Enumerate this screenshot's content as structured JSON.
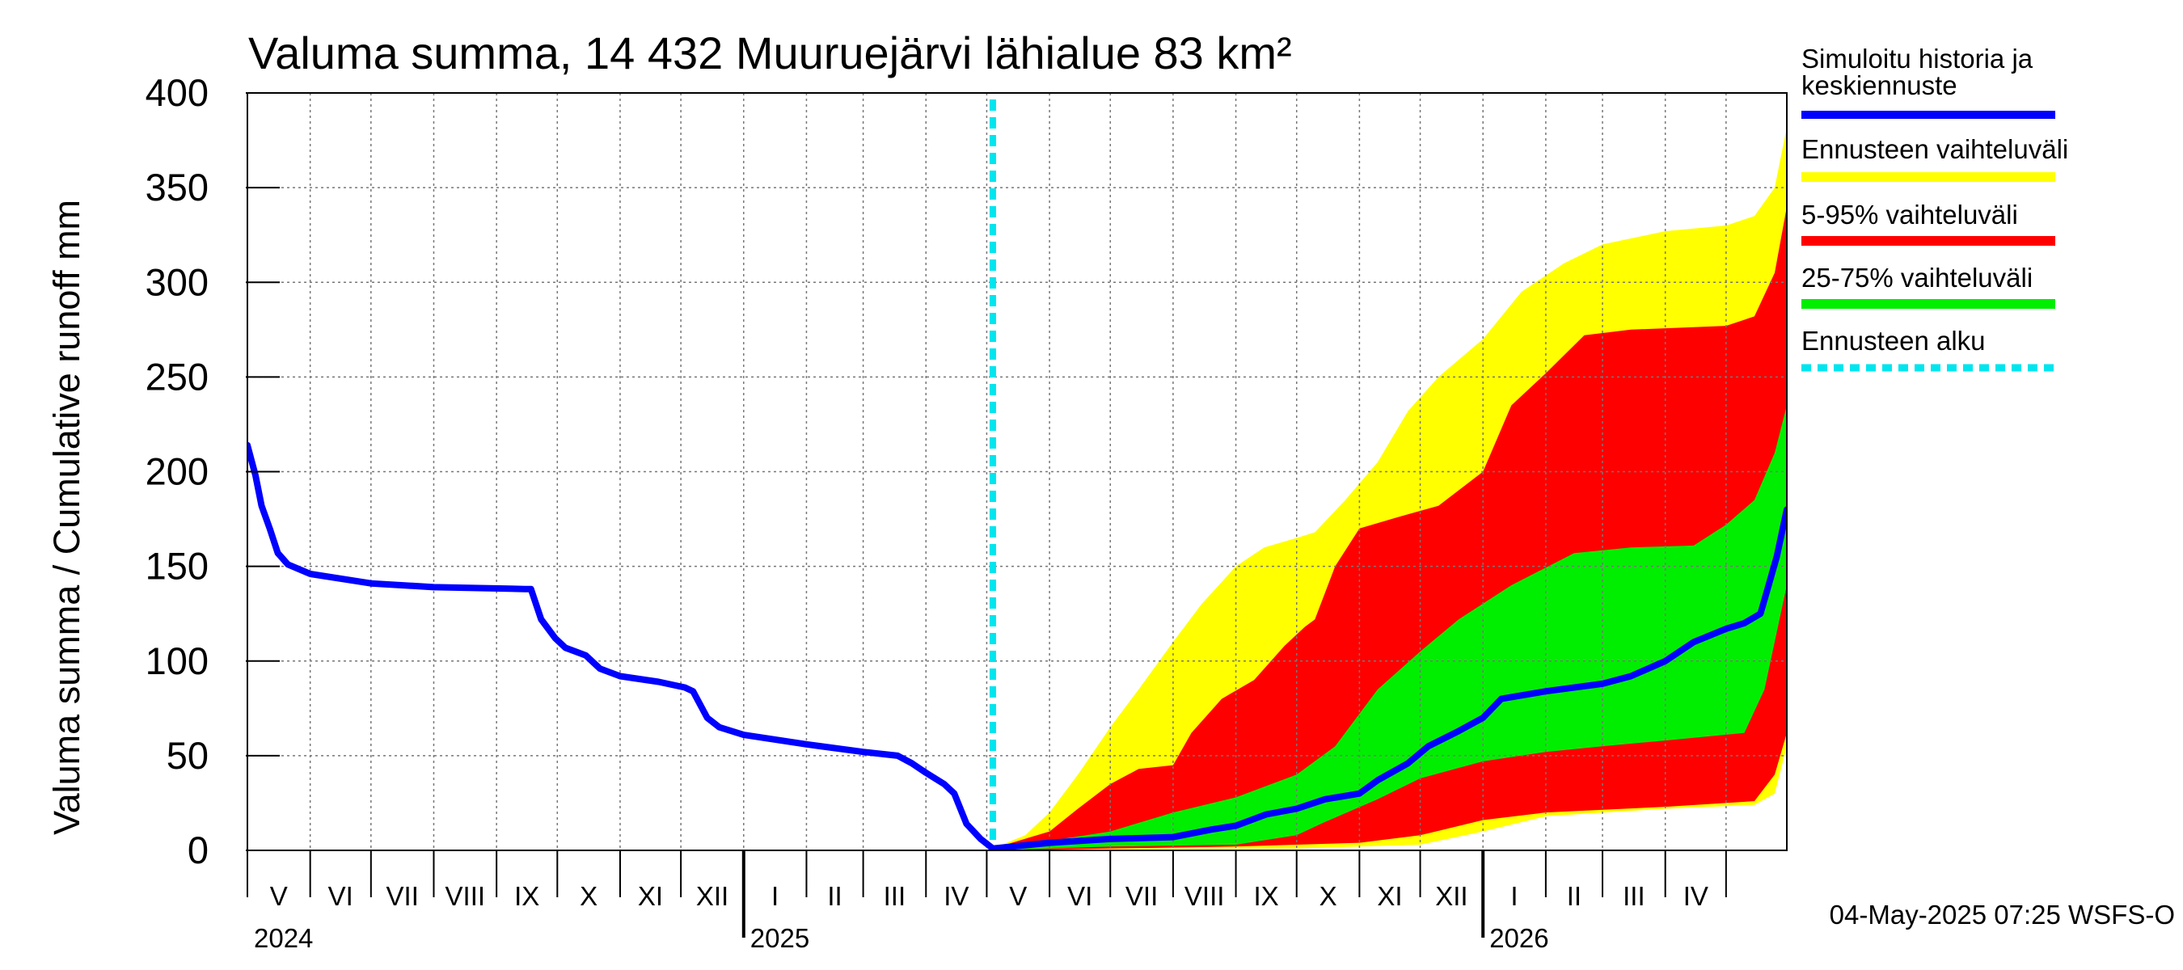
{
  "chart_data": {
    "type": "area",
    "title": "Valuma summa, 14 432 Muuruejärvi lähialue 83 km²",
    "ylabel": "Valuma summa / Cumulative runoff    mm",
    "xlabel": "",
    "ylim": [
      0,
      400
    ],
    "yticks": [
      0,
      50,
      100,
      150,
      200,
      250,
      300,
      350,
      400
    ],
    "xlim": [
      "2024-05-01",
      "2026-05-31"
    ],
    "grid": true,
    "legend_position": "right",
    "month_labels": [
      "V",
      "VI",
      "VII",
      "VIII",
      "IX",
      "X",
      "XI",
      "XII",
      "I",
      "II",
      "III",
      "IV",
      "V",
      "VI",
      "VII",
      "VIII",
      "IX",
      "X",
      "XI",
      "XII",
      "I",
      "II",
      "III",
      "IV"
    ],
    "year_labels": [
      {
        "label": "2024",
        "date": "2024-05-01"
      },
      {
        "label": "2025",
        "date": "2025-01-01"
      },
      {
        "label": "2026",
        "date": "2026-01-01"
      }
    ],
    "forecast_start": "2025-05-04",
    "series": [
      {
        "name": "Simuloitu historia ja keskiennuste",
        "color": "#0000ff",
        "points": [
          [
            "2024-05-01",
            214
          ],
          [
            "2024-05-05",
            198
          ],
          [
            "2024-05-08",
            182
          ],
          [
            "2024-05-12",
            170
          ],
          [
            "2024-05-16",
            157
          ],
          [
            "2024-05-21",
            151
          ],
          [
            "2024-06-01",
            146
          ],
          [
            "2024-07-01",
            141
          ],
          [
            "2024-08-01",
            139
          ],
          [
            "2024-09-15",
            138
          ],
          [
            "2024-09-18",
            138
          ],
          [
            "2024-09-23",
            122
          ],
          [
            "2024-09-30",
            112
          ],
          [
            "2024-10-05",
            107
          ],
          [
            "2024-10-15",
            103
          ],
          [
            "2024-10-22",
            96
          ],
          [
            "2024-11-01",
            92
          ],
          [
            "2024-11-20",
            89
          ],
          [
            "2024-12-03",
            86
          ],
          [
            "2024-12-07",
            84
          ],
          [
            "2024-12-14",
            70
          ],
          [
            "2024-12-20",
            65
          ],
          [
            "2025-01-01",
            61
          ],
          [
            "2025-02-01",
            56
          ],
          [
            "2025-03-01",
            52
          ],
          [
            "2025-03-18",
            50
          ],
          [
            "2025-03-25",
            46
          ],
          [
            "2025-04-01",
            41
          ],
          [
            "2025-04-10",
            35
          ],
          [
            "2025-04-15",
            30
          ],
          [
            "2025-04-21",
            14
          ],
          [
            "2025-04-28",
            6
          ],
          [
            "2025-05-04",
            1
          ],
          [
            "2025-06-01",
            4
          ],
          [
            "2025-07-01",
            6
          ],
          [
            "2025-08-01",
            7
          ],
          [
            "2025-08-20",
            11
          ],
          [
            "2025-09-01",
            13
          ],
          [
            "2025-09-16",
            19
          ],
          [
            "2025-10-01",
            22
          ],
          [
            "2025-10-15",
            27
          ],
          [
            "2025-11-01",
            30
          ],
          [
            "2025-11-10",
            37
          ],
          [
            "2025-11-25",
            46
          ],
          [
            "2025-12-05",
            55
          ],
          [
            "2025-12-20",
            63
          ],
          [
            "2026-01-01",
            70
          ],
          [
            "2026-01-10",
            80
          ],
          [
            "2026-02-01",
            84
          ],
          [
            "2026-03-01",
            88
          ],
          [
            "2026-03-15",
            92
          ],
          [
            "2026-04-01",
            100
          ],
          [
            "2026-04-15",
            110
          ],
          [
            "2026-05-01",
            117
          ],
          [
            "2026-05-10",
            120
          ],
          [
            "2026-05-18",
            125
          ],
          [
            "2026-05-22",
            140
          ],
          [
            "2026-05-26",
            155
          ],
          [
            "2026-05-31",
            180
          ]
        ]
      },
      {
        "name": "Ennusteen vaihteluväli",
        "color": "#ffff00",
        "upper": [
          [
            "2025-05-04",
            1
          ],
          [
            "2025-05-20",
            8
          ],
          [
            "2025-06-01",
            20
          ],
          [
            "2025-06-15",
            40
          ],
          [
            "2025-07-01",
            65
          ],
          [
            "2025-07-15",
            85
          ],
          [
            "2025-08-01",
            110
          ],
          [
            "2025-08-15",
            130
          ],
          [
            "2025-09-01",
            150
          ],
          [
            "2025-09-15",
            160
          ],
          [
            "2025-10-01",
            165
          ],
          [
            "2025-10-10",
            168
          ],
          [
            "2025-10-25",
            185
          ],
          [
            "2025-11-10",
            205
          ],
          [
            "2025-11-25",
            232
          ],
          [
            "2025-12-10",
            250
          ],
          [
            "2026-01-01",
            270
          ],
          [
            "2026-01-20",
            295
          ],
          [
            "2026-02-10",
            310
          ],
          [
            "2026-03-01",
            320
          ],
          [
            "2026-04-01",
            327
          ],
          [
            "2026-05-01",
            330
          ],
          [
            "2026-05-15",
            335
          ],
          [
            "2026-05-25",
            350
          ],
          [
            "2026-05-31",
            382
          ]
        ],
        "lower": [
          [
            "2025-05-04",
            0
          ],
          [
            "2025-08-01",
            1
          ],
          [
            "2025-10-01",
            1
          ],
          [
            "2025-12-01",
            3
          ],
          [
            "2026-01-01",
            10
          ],
          [
            "2026-02-01",
            18
          ],
          [
            "2026-04-01",
            22
          ],
          [
            "2026-05-15",
            24
          ],
          [
            "2026-05-25",
            30
          ],
          [
            "2026-05-31",
            55
          ]
        ]
      },
      {
        "name": "5-95% vaihteluväli",
        "color": "#ff0000",
        "upper": [
          [
            "2025-05-04",
            1
          ],
          [
            "2025-06-01",
            10
          ],
          [
            "2025-06-15",
            22
          ],
          [
            "2025-07-01",
            35
          ],
          [
            "2025-07-15",
            43
          ],
          [
            "2025-08-01",
            45
          ],
          [
            "2025-08-10",
            62
          ],
          [
            "2025-08-25",
            80
          ],
          [
            "2025-09-10",
            90
          ],
          [
            "2025-09-25",
            108
          ],
          [
            "2025-10-05",
            118
          ],
          [
            "2025-10-10",
            122
          ],
          [
            "2025-10-20",
            150
          ],
          [
            "2025-11-01",
            170
          ],
          [
            "2025-11-20",
            176
          ],
          [
            "2025-12-10",
            182
          ],
          [
            "2026-01-01",
            200
          ],
          [
            "2026-01-15",
            235
          ],
          [
            "2026-02-01",
            252
          ],
          [
            "2026-02-20",
            272
          ],
          [
            "2026-03-15",
            275
          ],
          [
            "2026-05-01",
            277
          ],
          [
            "2026-05-15",
            282
          ],
          [
            "2026-05-25",
            305
          ],
          [
            "2026-05-31",
            340
          ]
        ],
        "lower": [
          [
            "2025-05-04",
            0
          ],
          [
            "2025-09-01",
            2
          ],
          [
            "2025-11-01",
            4
          ],
          [
            "2025-12-01",
            8
          ],
          [
            "2026-01-01",
            16
          ],
          [
            "2026-02-01",
            20
          ],
          [
            "2026-04-01",
            23
          ],
          [
            "2026-05-15",
            26
          ],
          [
            "2026-05-25",
            40
          ],
          [
            "2026-05-31",
            62
          ]
        ]
      },
      {
        "name": "25-75% vaihteluväli",
        "color": "#00ee00",
        "upper": [
          [
            "2025-05-04",
            1
          ],
          [
            "2025-06-01",
            5
          ],
          [
            "2025-07-01",
            10
          ],
          [
            "2025-08-01",
            20
          ],
          [
            "2025-09-01",
            28
          ],
          [
            "2025-10-01",
            40
          ],
          [
            "2025-10-20",
            55
          ],
          [
            "2025-11-10",
            85
          ],
          [
            "2025-12-01",
            105
          ],
          [
            "2025-12-20",
            122
          ],
          [
            "2026-01-15",
            140
          ],
          [
            "2026-02-15",
            157
          ],
          [
            "2026-03-15",
            160
          ],
          [
            "2026-04-15",
            161
          ],
          [
            "2026-05-01",
            172
          ],
          [
            "2026-05-15",
            185
          ],
          [
            "2026-05-25",
            210
          ],
          [
            "2026-05-31",
            235
          ]
        ],
        "lower": [
          [
            "2025-05-04",
            0
          ],
          [
            "2025-07-01",
            2
          ],
          [
            "2025-09-01",
            3
          ],
          [
            "2025-10-01",
            8
          ],
          [
            "2025-10-15",
            15
          ],
          [
            "2025-11-10",
            27
          ],
          [
            "2025-12-01",
            38
          ],
          [
            "2026-01-01",
            47
          ],
          [
            "2026-02-01",
            52
          ],
          [
            "2026-03-01",
            55
          ],
          [
            "2026-04-01",
            58
          ],
          [
            "2026-05-10",
            62
          ],
          [
            "2026-05-20",
            85
          ],
          [
            "2026-05-31",
            140
          ]
        ]
      },
      {
        "name": "Ennusteen alku",
        "color": "#00e5ee"
      }
    ]
  },
  "footer": {
    "timestamp": "04-May-2025 07:25 WSFS-O"
  }
}
